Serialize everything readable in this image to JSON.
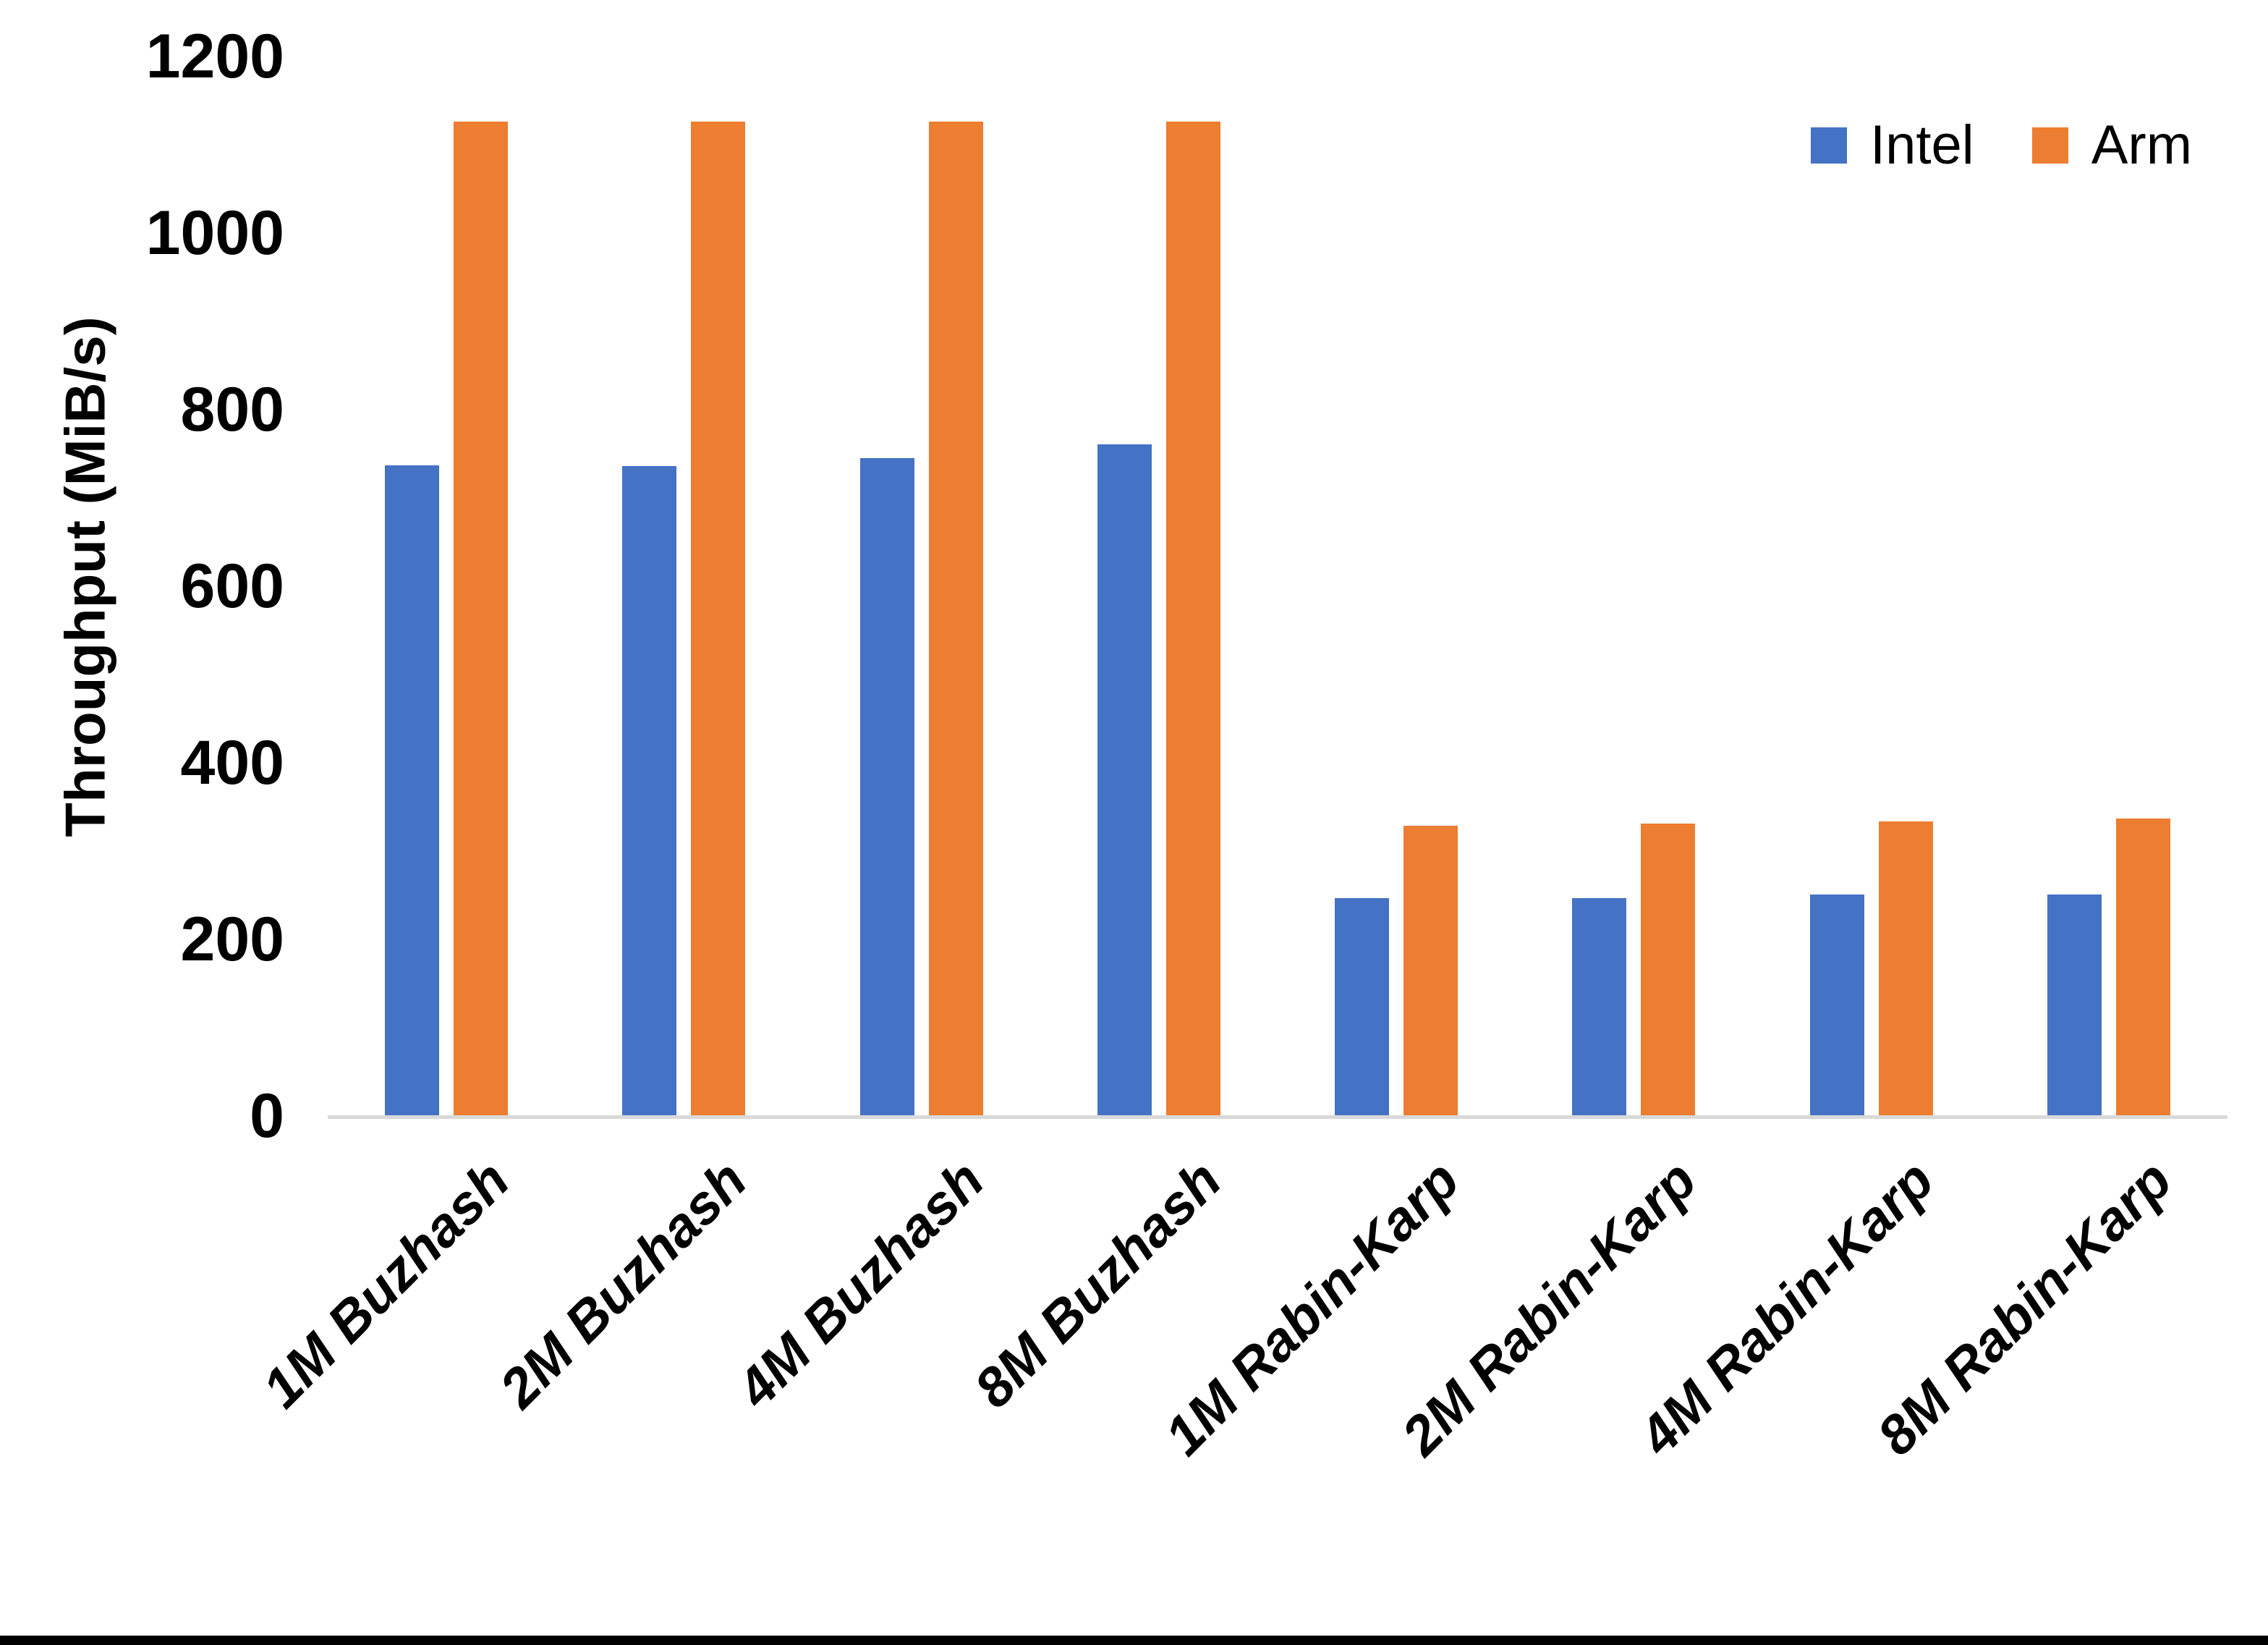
{
  "figure": {
    "bottom_border_color": "#000000",
    "background_color": "#ffffff",
    "axis_line_color": "#D9D9D9",
    "text_color": "#000000"
  },
  "chart_data": {
    "type": "bar",
    "title": "",
    "xlabel": "",
    "ylabel": "Throughput (MiB/s)",
    "ylim": [
      0,
      1200
    ],
    "yticks": [
      0,
      200,
      400,
      600,
      800,
      1000,
      1200
    ],
    "grid": false,
    "legend_position": "top-right",
    "x_label_rotation_deg": -45,
    "categories": [
      "1M Buzhash",
      "2M Buzhash",
      "4M Buzhash",
      "8M Buzhash",
      "1M Rabin-Karp",
      "2M Rabin-Karp",
      "4M Rabin-Karp",
      "8M Rabin-Karp"
    ],
    "series": [
      {
        "name": "Intel",
        "color": "#4472C4",
        "values": [
          737,
          736,
          745,
          761,
          247,
          247,
          251,
          251
        ]
      },
      {
        "name": "Arm",
        "color": "#ED7D31",
        "values": [
          1126,
          1126,
          1126,
          1126,
          329,
          331,
          334,
          337
        ]
      }
    ]
  }
}
